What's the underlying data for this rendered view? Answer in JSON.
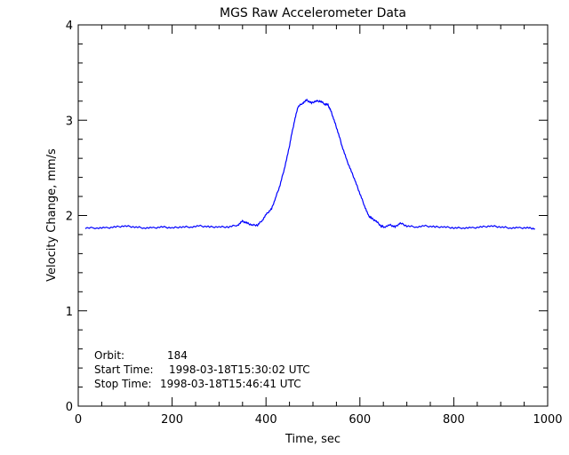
{
  "chart_data": {
    "type": "line",
    "title": "MGS Raw Accelerometer Data",
    "xlabel": "Time, sec",
    "ylabel": "Velocity Change, mm/s",
    "xlim": [
      0,
      1000
    ],
    "ylim": [
      0,
      4
    ],
    "x_ticks": [
      "0",
      "200",
      "400",
      "600",
      "800",
      "1000"
    ],
    "y_ticks": [
      "0",
      "1",
      "2",
      "3",
      "4"
    ],
    "grid": false,
    "line_color": "#0000ff",
    "series": [
      {
        "x": [
          15,
          40,
          60,
          80,
          100,
          120,
          140,
          160,
          180,
          200,
          220,
          240,
          260,
          280,
          300,
          320,
          340,
          350,
          360,
          370,
          382,
          392,
          402,
          412,
          420,
          430,
          439,
          448,
          455,
          462,
          468,
          478,
          487,
          497,
          506,
          516,
          525,
          532,
          538,
          545,
          553,
          562,
          572,
          582,
          591,
          600,
          610,
          618,
          625,
          635,
          645,
          652,
          665,
          675,
          686,
          700,
          720,
          740,
          760,
          780,
          800,
          820,
          840,
          860,
          880,
          900,
          920,
          940,
          960,
          973
        ],
        "y": [
          1.87,
          1.87,
          1.87,
          1.88,
          1.89,
          1.88,
          1.87,
          1.87,
          1.88,
          1.87,
          1.88,
          1.88,
          1.89,
          1.88,
          1.88,
          1.88,
          1.9,
          1.94,
          1.92,
          1.9,
          1.9,
          1.95,
          2.02,
          2.07,
          2.18,
          2.32,
          2.49,
          2.68,
          2.86,
          3.02,
          3.14,
          3.18,
          3.21,
          3.18,
          3.2,
          3.2,
          3.17,
          3.16,
          3.1,
          3.0,
          2.88,
          2.73,
          2.58,
          2.46,
          2.35,
          2.23,
          2.1,
          2.0,
          1.97,
          1.94,
          1.89,
          1.88,
          1.9,
          1.88,
          1.92,
          1.89,
          1.88,
          1.89,
          1.88,
          1.88,
          1.87,
          1.87,
          1.87,
          1.88,
          1.89,
          1.88,
          1.87,
          1.87,
          1.87,
          1.86
        ]
      }
    ],
    "annotations": {
      "orbit_label": "Orbit:",
      "orbit_value": "184",
      "start_label": "Start Time:",
      "start_value": "1998-03-18T15:30:02 UTC",
      "stop_label": "Stop Time:",
      "stop_value": "1998-03-18T15:46:41 UTC"
    }
  }
}
